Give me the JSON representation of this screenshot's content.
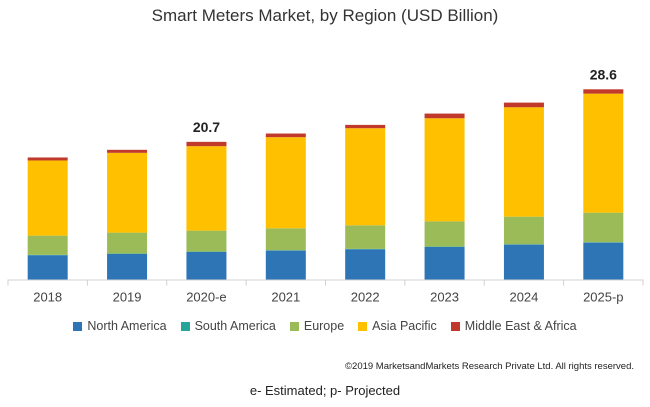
{
  "chart_data": {
    "type": "bar",
    "stacked": true,
    "title": "Smart Meters Market, by Region (USD Billion)",
    "categories": [
      "2018",
      "2019",
      "2020-e",
      "2021",
      "2022",
      "2023",
      "2024",
      "2025-p"
    ],
    "series": [
      {
        "name": "North America",
        "color": "#2E75B6",
        "values": [
          3.65,
          3.85,
          4.15,
          4.35,
          4.55,
          4.9,
          5.25,
          5.55
        ]
      },
      {
        "name": "South America",
        "color": "#26A69A",
        "values": [
          0.05,
          0.05,
          0.05,
          0.05,
          0.05,
          0.05,
          0.05,
          0.05
        ]
      },
      {
        "name": "Europe",
        "color": "#9BBB59",
        "values": [
          2.9,
          3.15,
          3.15,
          3.3,
          3.55,
          3.8,
          4.15,
          4.45
        ]
      },
      {
        "name": "Asia Pacific",
        "color": "#FFC000",
        "values": [
          11.3,
          12.0,
          12.7,
          13.7,
          14.6,
          15.5,
          16.45,
          17.9
        ]
      },
      {
        "name": "Middle East & Africa",
        "color": "#C0392B",
        "values": [
          0.45,
          0.45,
          0.65,
          0.55,
          0.5,
          0.7,
          0.7,
          0.65
        ]
      }
    ],
    "data_labels": [
      {
        "category": "2020-e",
        "text": "20.7"
      },
      {
        "category": "2025-p",
        "text": "28.6"
      }
    ],
    "ylim": [
      0,
      30
    ],
    "grid": false,
    "legend": "bottom"
  },
  "copyright": "©2019 MarketsandMarkets Research Private Ltd. All rights reserved.",
  "footnote": "e- Estimated; p- Projected"
}
